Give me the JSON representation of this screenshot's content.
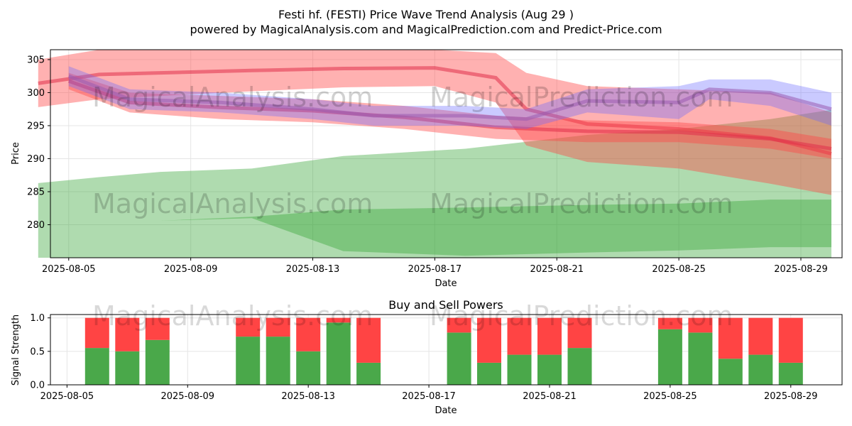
{
  "title_line1": "Festi hf. (FESTI) Price Wave Trend Analysis (Aug 29 )",
  "title_line2": "powered by MagicalAnalysis.com and MagicalPrediction.com and Predict-Price.com",
  "watermarks": [
    "MagicalAnalysis.com",
    "MagicalPrediction.com"
  ],
  "colors": {
    "green": "#2ca02c",
    "red": "#ff4444",
    "blue": "#6666ff",
    "buy": "#4aa84a",
    "sell": "#ff4444"
  },
  "chart_data": [
    {
      "type": "area",
      "ylabel": "Price",
      "xlabel": "Date",
      "xlim": [
        "2025-08-04",
        "2025-08-30"
      ],
      "ylim": [
        275,
        306.5
      ],
      "yticks": [
        280,
        285,
        290,
        295,
        300,
        305
      ],
      "xticks": [
        "2025-08-05",
        "2025-08-09",
        "2025-08-13",
        "2025-08-17",
        "2025-08-21",
        "2025-08-25",
        "2025-08-29"
      ],
      "series": [
        {
          "name": "green-wide-band",
          "color": "green",
          "x": [
            "2025-08-04",
            "2025-08-06",
            "2025-08-08",
            "2025-08-11",
            "2025-08-14",
            "2025-08-18",
            "2025-08-22",
            "2025-08-25",
            "2025-08-28",
            "2025-08-30"
          ],
          "upper": [
            286.3,
            287.2,
            288.0,
            288.5,
            290.4,
            291.5,
            293.6,
            294.5,
            296.0,
            297.4
          ],
          "lower": [
            275.0,
            275.0,
            275.0,
            275.0,
            275.0,
            275.0,
            275.0,
            275.0,
            275.0,
            275.0
          ]
        },
        {
          "name": "green-low-band",
          "color": "green",
          "x": [
            "2025-08-04",
            "2025-08-08",
            "2025-08-11",
            "2025-08-14",
            "2025-08-18",
            "2025-08-22",
            "2025-08-25",
            "2025-08-28",
            "2025-08-30"
          ],
          "upper": [
            279.2,
            280.6,
            281.2,
            282.3,
            282.6,
            283.0,
            283.2,
            283.8,
            283.8
          ],
          "lower": [
            279.2,
            280.6,
            281.0,
            276.0,
            275.3,
            275.8,
            276.1,
            276.6,
            276.6
          ]
        },
        {
          "name": "red-upper-band",
          "color": "red",
          "x": [
            "2025-08-04",
            "2025-08-06",
            "2025-08-08",
            "2025-08-11",
            "2025-08-14",
            "2025-08-17",
            "2025-08-19",
            "2025-08-20",
            "2025-08-22",
            "2025-08-25",
            "2025-08-28",
            "2025-08-30"
          ],
          "upper": [
            305.0,
            306.5,
            306.5,
            306.5,
            306.5,
            306.5,
            306.0,
            303.0,
            301.0,
            300.5,
            300.0,
            297.0
          ],
          "lower": [
            297.8,
            299.0,
            299.5,
            300.2,
            300.8,
            301.0,
            298.5,
            292.0,
            289.5,
            288.5,
            286.2,
            284.5
          ]
        },
        {
          "name": "red-lower-band",
          "color": "red",
          "x": [
            "2025-08-05",
            "2025-08-07",
            "2025-08-10",
            "2025-08-13",
            "2025-08-16",
            "2025-08-19",
            "2025-08-22",
            "2025-08-25",
            "2025-08-28",
            "2025-08-30"
          ],
          "upper": [
            303.0,
            300.0,
            299.5,
            299.0,
            298.0,
            296.5,
            295.8,
            295.5,
            294.5,
            293.0
          ],
          "lower": [
            300.5,
            297.0,
            296.0,
            295.5,
            294.5,
            293.0,
            292.5,
            292.5,
            291.5,
            290.0
          ]
        },
        {
          "name": "blue-band",
          "color": "blue",
          "x": [
            "2025-08-05",
            "2025-08-07",
            "2025-08-10",
            "2025-08-13",
            "2025-08-15",
            "2025-08-18",
            "2025-08-20",
            "2025-08-22",
            "2025-08-25",
            "2025-08-26",
            "2025-08-28",
            "2025-08-30"
          ],
          "upper": [
            304.0,
            300.5,
            300.0,
            299.0,
            298.0,
            298.0,
            297.5,
            300.5,
            301.0,
            302.0,
            302.0,
            300.0
          ],
          "lower": [
            301.0,
            297.5,
            297.0,
            296.0,
            295.0,
            295.0,
            294.5,
            297.0,
            296.0,
            299.0,
            298.0,
            295.0
          ]
        }
      ]
    },
    {
      "type": "bar",
      "title": "Buy and Sell Powers",
      "ylabel": "Signal Strength",
      "xlabel": "Date",
      "ylim": [
        0,
        1.05
      ],
      "yticks": [
        "0.0",
        "0.5",
        "1.0"
      ],
      "xticks": [
        "2025-08-05",
        "2025-08-09",
        "2025-08-13",
        "2025-08-17",
        "2025-08-21",
        "2025-08-25",
        "2025-08-29"
      ],
      "dates": [
        "2025-08-06",
        "2025-08-07",
        "2025-08-08",
        "2025-08-11",
        "2025-08-12",
        "2025-08-13",
        "2025-08-14",
        "2025-08-15",
        "2025-08-18",
        "2025-08-19",
        "2025-08-20",
        "2025-08-21",
        "2025-08-22",
        "2025-08-25",
        "2025-08-26",
        "2025-08-27",
        "2025-08-28",
        "2025-08-29"
      ],
      "buy": [
        0.55,
        0.5,
        0.67,
        0.72,
        0.72,
        0.5,
        0.93,
        0.33,
        0.78,
        0.33,
        0.45,
        0.45,
        0.55,
        0.83,
        0.78,
        0.39,
        0.45,
        0.33
      ],
      "sell": [
        0.45,
        0.5,
        0.33,
        0.28,
        0.28,
        0.5,
        0.07,
        0.67,
        0.22,
        0.67,
        0.55,
        0.55,
        0.45,
        0.17,
        0.22,
        0.61,
        0.55,
        0.67
      ]
    }
  ]
}
